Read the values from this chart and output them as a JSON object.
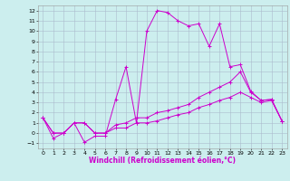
{
  "xlabel": "Windchill (Refroidissement éolien,°C)",
  "background_color": "#cceeee",
  "grid_color": "#aabbcc",
  "line_color": "#cc00cc",
  "xlim": [
    -0.5,
    23.5
  ],
  "ylim": [
    -1.5,
    12.5
  ],
  "xticks": [
    0,
    1,
    2,
    3,
    4,
    5,
    6,
    7,
    8,
    9,
    10,
    11,
    12,
    13,
    14,
    15,
    16,
    17,
    18,
    19,
    20,
    21,
    22,
    23
  ],
  "yticks": [
    -1,
    0,
    1,
    2,
    3,
    4,
    5,
    6,
    7,
    8,
    9,
    10,
    11,
    12
  ],
  "line1_y": [
    1.5,
    -0.5,
    0.0,
    1.0,
    -0.9,
    -0.3,
    -0.3,
    3.3,
    6.5,
    1.0,
    10.0,
    12.0,
    11.8,
    11.0,
    10.5,
    10.7,
    8.5,
    10.7,
    6.5,
    6.7,
    4.1,
    3.2,
    3.3,
    1.2
  ],
  "line2_y": [
    1.5,
    0.0,
    0.0,
    1.0,
    1.0,
    0.0,
    0.0,
    0.8,
    1.0,
    1.5,
    1.5,
    2.0,
    2.2,
    2.5,
    2.8,
    3.5,
    4.0,
    4.5,
    5.0,
    6.0,
    4.0,
    3.2,
    3.3,
    1.2
  ],
  "line3_y": [
    1.5,
    0.0,
    0.0,
    1.0,
    1.0,
    0.0,
    0.0,
    0.5,
    0.5,
    1.0,
    1.0,
    1.2,
    1.5,
    1.8,
    2.0,
    2.5,
    2.8,
    3.2,
    3.5,
    4.0,
    3.5,
    3.0,
    3.2,
    1.2
  ],
  "tick_fontsize": 4.5,
  "xlabel_fontsize": 5.5,
  "figwidth": 3.2,
  "figheight": 2.0,
  "dpi": 100
}
